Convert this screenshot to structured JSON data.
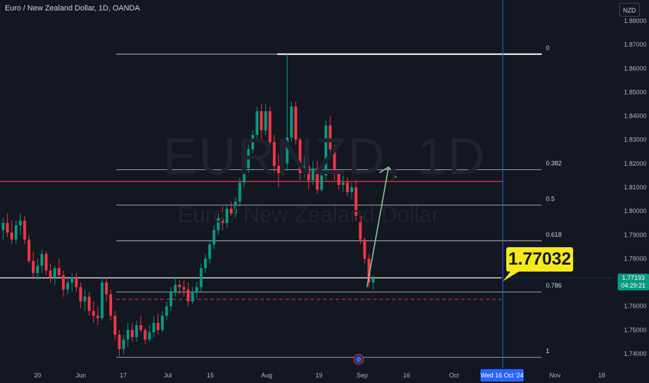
{
  "header": {
    "symbol_title": "Euro / New Zealand Dollar, 1D, OANDA",
    "currency": "NZD"
  },
  "watermark": {
    "ticker": "EURNZD, 1D",
    "name": "Euro / New Zealand Dollar"
  },
  "callout": {
    "text": "1.77032"
  },
  "last_price": {
    "price": "1.77193",
    "countdown": "04:29:21"
  },
  "crosshair_date": "Wed 16 Oct '24",
  "colors": {
    "up": "#089981",
    "down": "#f23645",
    "background": "#131722",
    "callout": "#f5e91d",
    "arrow": "#8fc79a",
    "horizontal_line": "#f23645"
  },
  "chart_data": {
    "type": "candlestick",
    "title": "Euro / New Zealand Dollar, 1D, OANDA",
    "ylim": [
      1.735,
      1.89
    ],
    "y_ticks": [
      "1.74000",
      "1.75000",
      "1.76000",
      "1.77000",
      "1.78000",
      "1.79000",
      "1.80000",
      "1.81000",
      "1.82000",
      "1.83000",
      "1.84000",
      "1.85000",
      "1.86000",
      "1.87000",
      "1.88000"
    ],
    "x_ticks": [
      "20",
      "Jun",
      "17",
      "Jul",
      "15",
      "Aug",
      "19",
      "Sep",
      "16",
      "Oct",
      "Nov",
      "18"
    ],
    "fibonacci": {
      "from": 1.866,
      "to": 1.7385,
      "levels": [
        {
          "label": "0",
          "value": 1.866
        },
        {
          "label": "0.382",
          "value": 1.8174
        },
        {
          "label": "0.5",
          "value": 1.8025
        },
        {
          "label": "0.618",
          "value": 1.7875
        },
        {
          "label": "0.786",
          "value": 1.766
        },
        {
          "label": "1",
          "value": 1.7385
        }
      ]
    },
    "horizontal_line": 1.8125,
    "dashed_line": 1.7629,
    "price_line": 1.77193,
    "projection": {
      "from": 1.768,
      "to": 1.8185,
      "direction": "up"
    },
    "candles": [
      [
        1.792,
        1.797,
        1.788,
        1.795
      ],
      [
        1.795,
        1.799,
        1.789,
        1.791
      ],
      [
        1.791,
        1.796,
        1.786,
        1.788
      ],
      [
        1.788,
        1.796,
        1.786,
        1.794
      ],
      [
        1.794,
        1.799,
        1.79,
        1.796
      ],
      [
        1.796,
        1.798,
        1.786,
        1.788
      ],
      [
        1.788,
        1.79,
        1.778,
        1.779
      ],
      [
        1.779,
        1.783,
        1.772,
        1.774
      ],
      [
        1.774,
        1.78,
        1.771,
        1.777
      ],
      [
        1.777,
        1.784,
        1.774,
        1.782
      ],
      [
        1.782,
        1.783,
        1.773,
        1.775
      ],
      [
        1.775,
        1.778,
        1.77,
        1.772
      ],
      [
        1.772,
        1.777,
        1.769,
        1.776
      ],
      [
        1.776,
        1.78,
        1.772,
        1.773
      ],
      [
        1.773,
        1.775,
        1.764,
        1.767
      ],
      [
        1.767,
        1.772,
        1.765,
        1.77
      ],
      [
        1.77,
        1.774,
        1.766,
        1.772
      ],
      [
        1.772,
        1.774,
        1.766,
        1.768
      ],
      [
        1.768,
        1.77,
        1.759,
        1.762
      ],
      [
        1.762,
        1.767,
        1.758,
        1.764
      ],
      [
        1.764,
        1.766,
        1.756,
        1.758
      ],
      [
        1.758,
        1.762,
        1.753,
        1.756
      ],
      [
        1.756,
        1.76,
        1.752,
        1.755
      ],
      [
        1.755,
        1.772,
        1.754,
        1.77
      ],
      [
        1.77,
        1.772,
        1.762,
        1.765
      ],
      [
        1.765,
        1.767,
        1.754,
        1.756
      ],
      [
        1.756,
        1.758,
        1.746,
        1.748
      ],
      [
        1.748,
        1.75,
        1.739,
        1.742
      ],
      [
        1.742,
        1.748,
        1.74,
        1.746
      ],
      [
        1.746,
        1.753,
        1.743,
        1.75
      ],
      [
        1.75,
        1.753,
        1.745,
        1.747
      ],
      [
        1.747,
        1.754,
        1.745,
        1.752
      ],
      [
        1.752,
        1.756,
        1.749,
        1.75
      ],
      [
        1.75,
        1.751,
        1.744,
        1.746
      ],
      [
        1.746,
        1.752,
        1.745,
        1.749
      ],
      [
        1.749,
        1.756,
        1.747,
        1.753
      ],
      [
        1.753,
        1.757,
        1.748,
        1.75
      ],
      [
        1.75,
        1.758,
        1.749,
        1.756
      ],
      [
        1.756,
        1.762,
        1.754,
        1.76
      ],
      [
        1.76,
        1.768,
        1.758,
        1.766
      ],
      [
        1.766,
        1.772,
        1.764,
        1.769
      ],
      [
        1.769,
        1.771,
        1.765,
        1.768
      ],
      [
        1.768,
        1.771,
        1.764,
        1.767
      ],
      [
        1.767,
        1.77,
        1.76,
        1.762
      ],
      [
        1.762,
        1.768,
        1.761,
        1.766
      ],
      [
        1.766,
        1.77,
        1.763,
        1.768
      ],
      [
        1.768,
        1.778,
        1.766,
        1.776
      ],
      [
        1.776,
        1.782,
        1.774,
        1.78
      ],
      [
        1.78,
        1.788,
        1.778,
        1.786
      ],
      [
        1.786,
        1.794,
        1.784,
        1.792
      ],
      [
        1.792,
        1.799,
        1.79,
        1.797
      ],
      [
        1.797,
        1.802,
        1.792,
        1.795
      ],
      [
        1.795,
        1.803,
        1.793,
        1.801
      ],
      [
        1.801,
        1.804,
        1.798,
        1.799
      ],
      [
        1.799,
        1.806,
        1.797,
        1.804
      ],
      [
        1.804,
        1.814,
        1.802,
        1.812
      ],
      [
        1.812,
        1.82,
        1.81,
        1.818
      ],
      [
        1.818,
        1.828,
        1.816,
        1.826
      ],
      [
        1.826,
        1.834,
        1.824,
        1.832
      ],
      [
        1.832,
        1.844,
        1.83,
        1.842
      ],
      [
        1.842,
        1.845,
        1.83,
        1.834
      ],
      [
        1.834,
        1.845,
        1.832,
        1.842
      ],
      [
        1.842,
        1.844,
        1.827,
        1.829
      ],
      [
        1.829,
        1.832,
        1.816,
        1.819
      ],
      [
        1.819,
        1.824,
        1.81,
        1.816
      ],
      [
        1.816,
        1.823,
        1.815,
        1.82
      ],
      [
        1.82,
        1.866,
        1.817,
        1.831
      ],
      [
        1.831,
        1.846,
        1.829,
        1.844
      ],
      [
        1.844,
        1.846,
        1.828,
        1.83
      ],
      [
        1.83,
        1.831,
        1.813,
        1.816
      ],
      [
        1.816,
        1.823,
        1.814,
        1.819
      ],
      [
        1.819,
        1.823,
        1.809,
        1.813
      ],
      [
        1.813,
        1.821,
        1.811,
        1.818
      ],
      [
        1.818,
        1.821,
        1.807,
        1.809
      ],
      [
        1.809,
        1.817,
        1.808,
        1.815
      ],
      [
        1.815,
        1.838,
        1.813,
        1.836
      ],
      [
        1.836,
        1.84,
        1.823,
        1.826
      ],
      [
        1.826,
        1.828,
        1.813,
        1.816
      ],
      [
        1.816,
        1.817,
        1.809,
        1.811
      ],
      [
        1.811,
        1.815,
        1.808,
        1.812
      ],
      [
        1.812,
        1.814,
        1.806,
        1.808
      ],
      [
        1.808,
        1.812,
        1.805,
        1.81
      ],
      [
        1.81,
        1.813,
        1.796,
        1.798
      ],
      [
        1.798,
        1.8,
        1.786,
        1.788
      ],
      [
        1.788,
        1.789,
        1.778,
        1.78
      ],
      [
        1.78,
        1.782,
        1.768,
        1.77
      ],
      [
        1.77,
        1.773,
        1.767,
        1.7719
      ]
    ]
  }
}
